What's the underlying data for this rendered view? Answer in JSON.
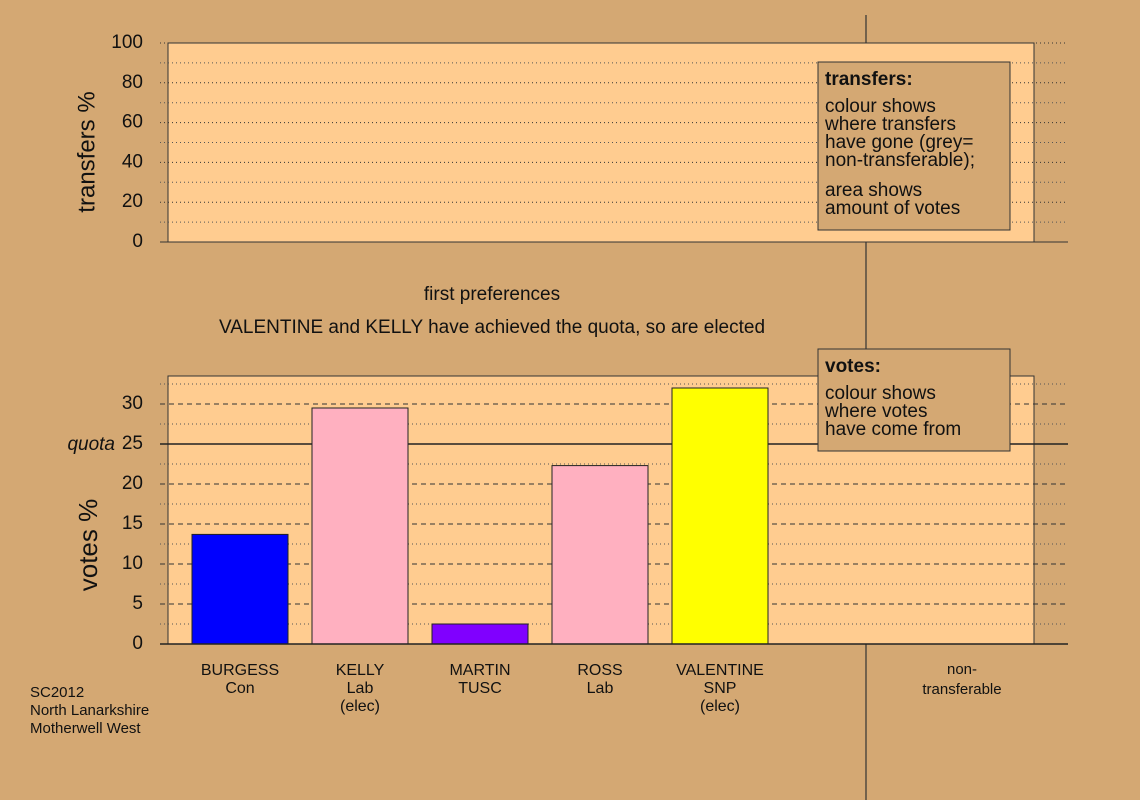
{
  "chart_data": [
    {
      "type": "panel",
      "ylabel": "transfers %",
      "ylim": [
        0,
        100
      ],
      "yticks": [
        0,
        20,
        40,
        60,
        80,
        100
      ],
      "minor_yticks": [
        10,
        30,
        50,
        70,
        90
      ],
      "legend": {
        "title": "transfers:",
        "paragraphs": [
          [
            "colour shows",
            "where transfers",
            "have gone (grey=",
            "non-transferable);"
          ],
          [
            "area shows",
            "amount of votes"
          ]
        ]
      }
    },
    {
      "type": "bar",
      "title": "first preferences",
      "subtitle": "VALENTINE and KELLY have achieved the quota, so are elected",
      "ylabel": "votes %",
      "ylim": [
        0,
        33.5
      ],
      "yticks": [
        0,
        5,
        10,
        15,
        20,
        25,
        30
      ],
      "minor_yticks": [
        2.5,
        7.5,
        12.5,
        17.5,
        22.5,
        27.5,
        32.5
      ],
      "quota": {
        "value": 25,
        "label": "quota"
      },
      "categories": [
        [
          "BURGESS",
          "Con"
        ],
        [
          "KELLY",
          "Lab",
          "(elec)"
        ],
        [
          "MARTIN",
          "TUSC"
        ],
        [
          "ROSS",
          "Lab"
        ],
        [
          "VALENTINE",
          "SNP",
          "(elec)"
        ]
      ],
      "values": [
        13.7,
        29.5,
        2.5,
        22.3,
        32.0
      ],
      "colors": [
        "#0000ff",
        "#ffb0c0",
        "#8000ff",
        "#ffb0c0",
        "#ffff00"
      ],
      "extra_column": [
        "non-",
        "transferable"
      ],
      "legend": {
        "title": "votes:",
        "paragraphs": [
          [
            "colour shows",
            "where votes",
            "have come from"
          ]
        ]
      }
    }
  ],
  "source": [
    "SC2012",
    "North Lanarkshire",
    "Motherwell West"
  ]
}
